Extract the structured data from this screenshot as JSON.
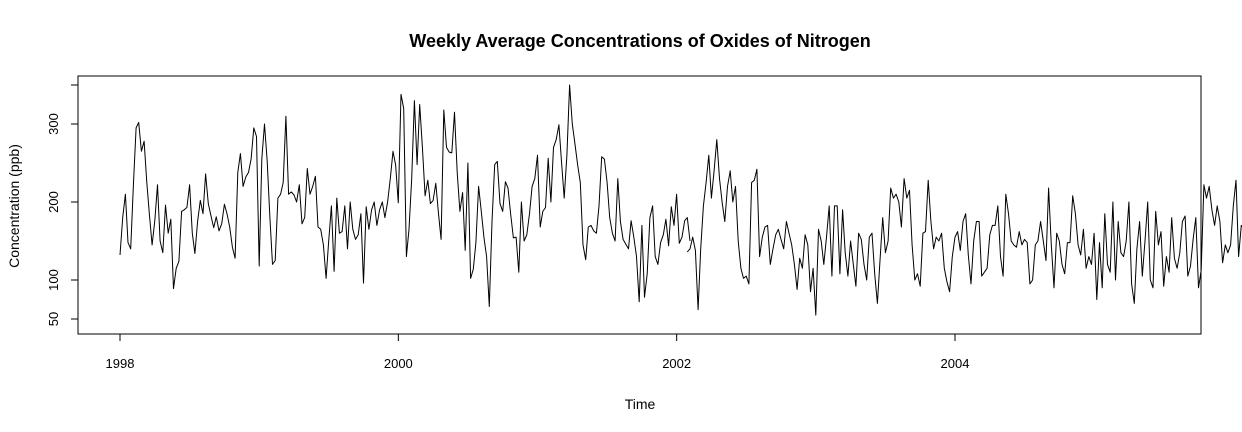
{
  "chart_data": {
    "type": "line",
    "title": "Weekly Average Concentrations of Oxides of Nitrogen",
    "xlabel": "Time",
    "ylabel": "Concentration (ppb)",
    "x_ticks": [
      1998,
      2000,
      2002,
      2004
    ],
    "x_tick_labels": [
      "1998",
      "2000",
      "2002",
      "2004"
    ],
    "y_ticks": [
      50,
      100,
      200,
      300
    ],
    "y_tick_labels": [
      "50",
      "100",
      "200",
      "300"
    ],
    "xlim": [
      1997.7,
      2005.9
    ],
    "ylim": [
      43,
      350
    ],
    "grid": false,
    "legend": "none",
    "line_color": "#000000",
    "series": [
      {
        "x_start": 1998.0,
        "x_step": 0.01923,
        "values": [
          132,
          180,
          210,
          148,
          140,
          222,
          295,
          302,
          265,
          278,
          225,
          184,
          145,
          176,
          222,
          150,
          135,
          196,
          160,
          178,
          89,
          115,
          124,
          188,
          190,
          193,
          222,
          160,
          134,
          175,
          202,
          185,
          236,
          198,
          182,
          167,
          181,
          163,
          172,
          197,
          185,
          168,
          142,
          128,
          238,
          262,
          220,
          232,
          238,
          255,
          295,
          284,
          118,
          255,
          300,
          252,
          180,
          120,
          125,
          205,
          210,
          225,
          310,
          210,
          213,
          209,
          200,
          222,
          172,
          180,
          243,
          210,
          220,
          233,
          168,
          165,
          145,
          102,
          150,
          195,
          111,
          205,
          160,
          162,
          195,
          140,
          200,
          165,
          152,
          158,
          185,
          96,
          194,
          165,
          190,
          200,
          170,
          190,
          200,
          180,
          200,
          230,
          265,
          248,
          199,
          338,
          320,
          130,
          165,
          230,
          330,
          248,
          325,
          270,
          208,
          228,
          198,
          202,
          224,
          185,
          152,
          318,
          270,
          264,
          263,
          315,
          238,
          188,
          212,
          138,
          250,
          102,
          114,
          148,
          220,
          188,
          154,
          130,
          66,
          175,
          248,
          252,
          198,
          188,
          226,
          218,
          184,
          154,
          155,
          110,
          200,
          150,
          158,
          185,
          220,
          230,
          260,
          168,
          188,
          193,
          256,
          200,
          270,
          280,
          299,
          250,
          205,
          260,
          350,
          300,
          275,
          248,
          225,
          145,
          126,
          168,
          170,
          163,
          160,
          195,
          258,
          255,
          225,
          180,
          160,
          150,
          230,
          175,
          152,
          146,
          140,
          176,
          155,
          130,
          72,
          170,
          78,
          108,
          180,
          195,
          130,
          120,
          148,
          158,
          178,
          144,
          194,
          170,
          210,
          147,
          155,
          176,
          180,
          150
        ]
      },
      {
        "x_start": 1998.0,
        "x_step": 0.01923,
        "offset_index": 212,
        "values": [
          136,
          140,
          155,
          138,
          62,
          140,
          195,
          225,
          260,
          205,
          240,
          280,
          230,
          200,
          175,
          220,
          240,
          200,
          220,
          150,
          115,
          102,
          105,
          95,
          225,
          228,
          242,
          130,
          155,
          168,
          170,
          120,
          140,
          158,
          165,
          152,
          140,
          175,
          160,
          145,
          120,
          88,
          128,
          115,
          158,
          145,
          85,
          115,
          55,
          165,
          150,
          120,
          155,
          195,
          105,
          195,
          195,
          108,
          190,
          135,
          105,
          150,
          120,
          92,
          160,
          152,
          120,
          100,
          155,
          160,
          108,
          70,
          125,
          180,
          135,
          150,
          218,
          205,
          210,
          200,
          168,
          230,
          205,
          215,
          145,
          100,
          108,
          92,
          160,
          162,
          228,
          175,
          140,
          155,
          150,
          160,
          115,
          98,
          85,
          130,
          155,
          162,
          138,
          175,
          185,
          132,
          95,
          150,
          175,
          175,
          105,
          110,
          115,
          158,
          170,
          170,
          195,
          130,
          105,
          210,
          185,
          150,
          145,
          142,
          162,
          145,
          152,
          148,
          95,
          100,
          145,
          150,
          175,
          150,
          125,
          218,
          145,
          90,
          160,
          150,
          120,
          108,
          148,
          148,
          208,
          185,
          145,
          132,
          165,
          115,
          130,
          120,
          160,
          75,
          148,
          90,
          185,
          120,
          110,
          200,
          100,
          175,
          135,
          130,
          150,
          200,
          95,
          70,
          140,
          175,
          105,
          150,
          200,
          100,
          90,
          188,
          145,
          162,
          92,
          130,
          110,
          180,
          128,
          115,
          135,
          175,
          182,
          105,
          118,
          152,
          180,
          90,
          113,
          222,
          205,
          220,
          190,
          170,
          195,
          175,
          122,
          145,
          135,
          145,
          195,
          228,
          130,
          170,
          165,
          150,
          160,
          110,
          175,
          175,
          150
        ]
      }
    ]
  }
}
